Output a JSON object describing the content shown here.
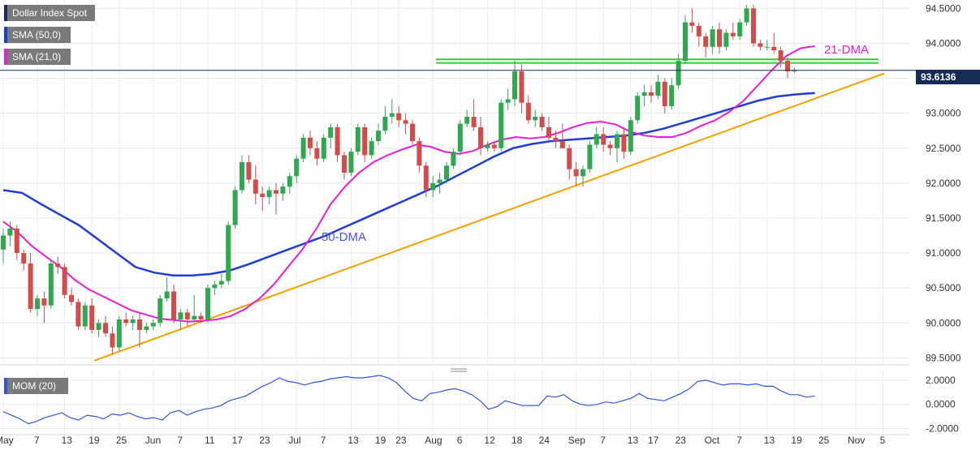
{
  "legend": {
    "symbol": "Dollar Index Spot",
    "sma50": "SMA (50,0)",
    "sma21": "SMA (21,0)",
    "mom": "MOM (20)"
  },
  "annotations": {
    "dma21": "21-DMA",
    "dma50": "50-DMA"
  },
  "last_price": "93.6136",
  "colors": {
    "up": "#2fa84f",
    "down": "#d34b4b",
    "sma50": "#1f3cd6",
    "sma21": "#e61ed8",
    "trendline": "#f5a000",
    "resistance": "#33cc33",
    "momentum": "#3355dd",
    "price_line": "#1c2c5a"
  },
  "chart_data": {
    "type": "candlestick",
    "title": "Dollar Index Spot",
    "y_ticks": [
      "94.5000",
      "94.0000",
      "93.5000",
      "93.0000",
      "92.5000",
      "92.0000",
      "91.5000",
      "91.0000",
      "90.5000",
      "90.0000",
      "89.5000"
    ],
    "ylim": [
      89.4,
      94.62
    ],
    "x_ticks": [
      "May",
      "7",
      "13",
      "19",
      "25",
      "Jun",
      "7",
      "11",
      "17",
      "23",
      "Jul",
      "7",
      "13",
      "19",
      "23",
      "Aug",
      "6",
      "12",
      "18",
      "24",
      "Sep",
      "7",
      "13",
      "17",
      "23",
      "Oct",
      "7",
      "13",
      "19",
      "25",
      "Nov",
      "5"
    ],
    "candles": [
      [
        91.05,
        91.35,
        90.85,
        91.25
      ],
      [
        91.25,
        91.45,
        91.1,
        91.35
      ],
      [
        91.35,
        91.4,
        90.9,
        91.0
      ],
      [
        91.0,
        91.05,
        90.75,
        90.85
      ],
      [
        90.85,
        91.0,
        90.15,
        90.2
      ],
      [
        90.2,
        90.4,
        90.1,
        90.35
      ],
      [
        90.35,
        90.45,
        90.0,
        90.25
      ],
      [
        90.25,
        90.9,
        90.2,
        90.85
      ],
      [
        90.85,
        90.95,
        90.7,
        90.8
      ],
      [
        90.8,
        90.85,
        90.35,
        90.4
      ],
      [
        90.4,
        90.5,
        90.25,
        90.3
      ],
      [
        90.3,
        90.35,
        89.9,
        89.95
      ],
      [
        89.95,
        90.3,
        89.9,
        90.25
      ],
      [
        90.25,
        90.35,
        89.85,
        89.9
      ],
      [
        89.9,
        90.05,
        89.8,
        90.0
      ],
      [
        90.0,
        90.1,
        89.8,
        89.85
      ],
      [
        89.85,
        89.95,
        89.55,
        89.65
      ],
      [
        89.65,
        90.1,
        89.6,
        90.05
      ],
      [
        90.05,
        90.15,
        89.95,
        90.0
      ],
      [
        90.0,
        90.1,
        89.9,
        90.05
      ],
      [
        90.05,
        90.15,
        89.65,
        89.9
      ],
      [
        89.9,
        90.0,
        89.85,
        89.95
      ],
      [
        89.95,
        90.05,
        89.9,
        90.0
      ],
      [
        90.0,
        90.4,
        89.95,
        90.35
      ],
      [
        90.35,
        90.65,
        90.3,
        90.45
      ],
      [
        90.45,
        90.55,
        90.0,
        90.05
      ],
      [
        90.05,
        90.2,
        89.9,
        90.15
      ],
      [
        90.15,
        90.2,
        89.95,
        90.05
      ],
      [
        90.05,
        90.4,
        90.0,
        90.1
      ],
      [
        90.1,
        90.15,
        90.0,
        90.05
      ],
      [
        90.05,
        90.55,
        90.0,
        90.5
      ],
      [
        90.5,
        90.6,
        90.4,
        90.55
      ],
      [
        90.55,
        90.7,
        90.5,
        90.6
      ],
      [
        90.6,
        91.45,
        90.55,
        91.4
      ],
      [
        91.4,
        91.95,
        91.35,
        91.9
      ],
      [
        91.9,
        92.4,
        91.85,
        92.3
      ],
      [
        92.3,
        92.4,
        92.0,
        92.05
      ],
      [
        92.05,
        92.25,
        91.7,
        91.85
      ],
      [
        91.85,
        91.95,
        91.6,
        91.8
      ],
      [
        91.8,
        91.95,
        91.7,
        91.9
      ],
      [
        91.9,
        92.0,
        91.55,
        91.85
      ],
      [
        91.85,
        92.0,
        91.75,
        91.95
      ],
      [
        91.95,
        92.15,
        91.85,
        92.1
      ],
      [
        92.1,
        92.4,
        92.0,
        92.35
      ],
      [
        92.35,
        92.7,
        92.3,
        92.65
      ],
      [
        92.65,
        92.75,
        92.4,
        92.5
      ],
      [
        92.5,
        92.6,
        92.25,
        92.35
      ],
      [
        92.35,
        92.7,
        92.3,
        92.65
      ],
      [
        92.65,
        92.85,
        92.5,
        92.8
      ],
      [
        92.8,
        92.85,
        92.3,
        92.4
      ],
      [
        92.4,
        92.45,
        92.05,
        92.15
      ],
      [
        92.15,
        92.5,
        92.1,
        92.45
      ],
      [
        92.45,
        92.85,
        92.4,
        92.8
      ],
      [
        92.8,
        92.85,
        92.3,
        92.4
      ],
      [
        92.4,
        92.65,
        92.35,
        92.6
      ],
      [
        92.6,
        92.85,
        92.55,
        92.75
      ],
      [
        92.75,
        93.1,
        92.7,
        92.95
      ],
      [
        92.95,
        93.2,
        92.85,
        93.0
      ],
      [
        93.0,
        93.1,
        92.8,
        92.9
      ],
      [
        92.9,
        93.0,
        92.7,
        92.85
      ],
      [
        92.85,
        92.9,
        92.55,
        92.6
      ],
      [
        92.6,
        92.65,
        92.15,
        92.25
      ],
      [
        92.25,
        92.3,
        91.8,
        91.9
      ],
      [
        91.9,
        92.1,
        91.8,
        92.0
      ],
      [
        92.0,
        92.15,
        91.85,
        92.05
      ],
      [
        92.05,
        92.3,
        92.0,
        92.25
      ],
      [
        92.25,
        92.5,
        92.2,
        92.45
      ],
      [
        92.45,
        92.9,
        92.4,
        92.85
      ],
      [
        92.85,
        93.05,
        92.8,
        92.95
      ],
      [
        92.95,
        93.2,
        92.75,
        92.8
      ],
      [
        92.8,
        92.95,
        92.4,
        92.5
      ],
      [
        92.5,
        92.6,
        92.45,
        92.55
      ],
      [
        92.55,
        92.6,
        92.45,
        92.5
      ],
      [
        92.5,
        93.2,
        92.45,
        93.15
      ],
      [
        93.15,
        93.35,
        93.05,
        93.2
      ],
      [
        93.2,
        93.75,
        93.1,
        93.6
      ],
      [
        93.6,
        93.7,
        93.0,
        93.15
      ],
      [
        93.15,
        93.25,
        92.85,
        92.9
      ],
      [
        92.9,
        93.05,
        92.8,
        92.95
      ],
      [
        92.95,
        93.0,
        92.75,
        92.8
      ],
      [
        92.8,
        92.95,
        92.6,
        92.65
      ],
      [
        92.65,
        92.75,
        92.5,
        92.6
      ],
      [
        92.6,
        92.85,
        92.55,
        92.5
      ],
      [
        92.5,
        92.55,
        92.05,
        92.2
      ],
      [
        92.2,
        92.3,
        91.95,
        92.1
      ],
      [
        92.1,
        92.25,
        91.95,
        92.2
      ],
      [
        92.2,
        92.6,
        92.15,
        92.55
      ],
      [
        92.55,
        92.8,
        92.5,
        92.7
      ],
      [
        92.7,
        92.8,
        92.45,
        92.55
      ],
      [
        92.55,
        92.6,
        92.4,
        92.5
      ],
      [
        92.5,
        92.75,
        92.3,
        92.7
      ],
      [
        92.7,
        92.8,
        92.35,
        92.45
      ],
      [
        92.45,
        92.95,
        92.4,
        92.9
      ],
      [
        92.9,
        93.3,
        92.85,
        93.25
      ],
      [
        93.25,
        93.4,
        93.1,
        93.3
      ],
      [
        93.3,
        93.4,
        93.15,
        93.25
      ],
      [
        93.25,
        93.55,
        93.2,
        93.45
      ],
      [
        93.45,
        93.5,
        93.0,
        93.1
      ],
      [
        93.1,
        93.5,
        93.05,
        93.4
      ],
      [
        93.4,
        93.85,
        93.35,
        93.75
      ],
      [
        93.75,
        94.4,
        93.7,
        94.3
      ],
      [
        94.3,
        94.5,
        94.15,
        94.25
      ],
      [
        94.25,
        94.3,
        93.95,
        94.1
      ],
      [
        94.1,
        94.15,
        93.8,
        93.95
      ],
      [
        93.95,
        94.25,
        93.85,
        94.2
      ],
      [
        94.2,
        94.3,
        93.85,
        93.95
      ],
      [
        93.95,
        94.2,
        93.9,
        94.15
      ],
      [
        94.15,
        94.3,
        94.05,
        94.1
      ],
      [
        94.1,
        94.35,
        94.05,
        94.3
      ],
      [
        94.3,
        94.55,
        94.25,
        94.5
      ],
      [
        94.5,
        94.55,
        93.95,
        94.0
      ],
      [
        94.0,
        94.05,
        93.9,
        93.95
      ],
      [
        93.95,
        94.05,
        93.9,
        93.95
      ],
      [
        93.95,
        94.15,
        93.85,
        93.9
      ],
      [
        93.9,
        93.95,
        93.65,
        93.75
      ],
      [
        93.75,
        93.8,
        93.5,
        93.6
      ],
      [
        93.6,
        93.65,
        93.58,
        93.61
      ]
    ],
    "sma21": [
      91.45,
      91.3,
      91.1,
      90.95,
      90.8,
      90.62,
      90.48,
      90.38,
      90.28,
      90.18,
      90.12,
      90.06,
      90.04,
      90.02,
      90.03,
      90.05,
      90.1,
      90.2,
      90.35,
      90.55,
      90.8,
      91.05,
      91.35,
      91.7,
      91.95,
      92.15,
      92.3,
      92.4,
      92.48,
      92.55,
      92.52,
      92.45,
      92.42,
      92.46,
      92.55,
      92.62,
      92.66,
      92.64,
      92.66,
      92.72,
      92.8,
      92.86,
      92.88,
      92.84,
      92.74,
      92.68,
      92.66,
      92.66,
      92.72,
      92.82,
      92.9,
      93.02,
      93.18,
      93.4,
      93.62,
      93.82,
      93.93,
      93.96
    ],
    "sma50": [
      91.9,
      91.86,
      91.7,
      91.55,
      91.4,
      91.2,
      91.0,
      90.8,
      90.72,
      90.68,
      90.68,
      90.7,
      90.75,
      90.84,
      90.94,
      91.04,
      91.14,
      91.24,
      91.36,
      91.48,
      91.6,
      91.72,
      91.84,
      91.96,
      92.1,
      92.24,
      92.38,
      92.5,
      92.56,
      92.6,
      92.62,
      92.64,
      92.66,
      92.68,
      92.72,
      92.78,
      92.86,
      92.94,
      93.02,
      93.1,
      93.18,
      93.24,
      93.27,
      93.29
    ],
    "trendline": {
      "x0": "May 22",
      "y0": 89.46,
      "x1": "Oct 29",
      "y1": 93.57
    },
    "resistance": [
      93.72,
      93.77
    ],
    "momentum": {
      "y_ticks": [
        "2.0000",
        "0.0000",
        "-2.0000"
      ],
      "ylim": [
        -2.1,
        2.6
      ],
      "values": [
        -0.6,
        -0.9,
        -1.2,
        -1.6,
        -1.4,
        -1.1,
        -0.9,
        -0.7,
        -1.1,
        -1.3,
        -0.9,
        -1.0,
        -1.2,
        -0.8,
        -0.9,
        -0.7,
        -1.0,
        -1.2,
        -1.1,
        -1.3,
        -0.7,
        -0.5,
        -0.9,
        -0.6,
        -0.4,
        -0.3,
        -0.1,
        0.3,
        0.5,
        0.7,
        1.1,
        1.5,
        1.8,
        2.2,
        1.9,
        1.8,
        1.6,
        1.8,
        1.9,
        2.1,
        2.2,
        2.3,
        2.2,
        2.2,
        2.3,
        2.4,
        2.2,
        1.8,
        1.1,
        0.5,
        0.3,
        0.9,
        1.0,
        1.2,
        1.3,
        1.1,
        0.8,
        0.3,
        -0.4,
        -0.2,
        0.3,
        0.1,
        -0.1,
        -0.1,
        -0.1,
        0.7,
        0.6,
        0.8,
        0.3,
        0.0,
        -0.1,
        0.0,
        0.2,
        0.1,
        0.3,
        0.5,
        0.9,
        0.5,
        0.4,
        0.3,
        0.6,
        0.9,
        1.3,
        1.9,
        2.0,
        1.8,
        1.6,
        1.7,
        1.7,
        1.6,
        1.7,
        1.5,
        1.5,
        1.1,
        0.8,
        0.8,
        0.6,
        0.7
      ]
    }
  }
}
